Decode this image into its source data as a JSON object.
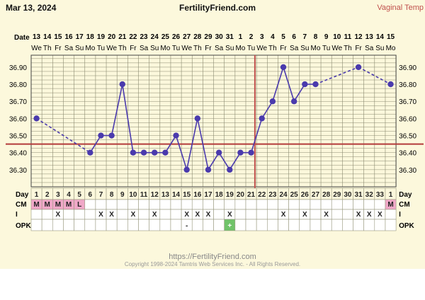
{
  "header": {
    "date": "Mar 13, 2024",
    "site": "FertilityFriend.com",
    "temp_method": "Vaginal Temp"
  },
  "footer": {
    "url": "https://FertilityFriend.com",
    "copyright": "Copyright 1998-2024 Tamtris Web Services Inc. - All Rights Reserved."
  },
  "colors": {
    "background": "#fcf8dc",
    "series": "#4a3aad",
    "coverline": "#b33a3a",
    "ovulation_line": "#c0504d",
    "grid": "#8a8a70",
    "cm_fill": "#f0a8c8",
    "opk_positive": "#70c36a"
  },
  "chart_data": {
    "type": "line",
    "date_row_label": "Date",
    "day_row_label": "Day",
    "dates": [
      "13",
      "14",
      "15",
      "16",
      "17",
      "18",
      "19",
      "20",
      "21",
      "22",
      "23",
      "24",
      "25",
      "26",
      "27",
      "28",
      "29",
      "30",
      "31",
      "1",
      "2",
      "3",
      "4",
      "5",
      "6",
      "7",
      "8",
      "9",
      "10",
      "11",
      "12",
      "13",
      "14",
      "15"
    ],
    "weekdays": [
      "We",
      "Th",
      "Fr",
      "Sa",
      "Su",
      "Mo",
      "Tu",
      "We",
      "Th",
      "Fr",
      "Sa",
      "Su",
      "Mo",
      "Tu",
      "We",
      "Th",
      "Fr",
      "Sa",
      "Su",
      "Mo",
      "Tu",
      "We",
      "Th",
      "Fr",
      "Sa",
      "Su",
      "Mo",
      "Tu",
      "We",
      "Th",
      "Fr",
      "Sa",
      "Su",
      "Mo"
    ],
    "cycle_days": [
      "1",
      "2",
      "3",
      "4",
      "5",
      "6",
      "7",
      "8",
      "9",
      "10",
      "11",
      "12",
      "13",
      "14",
      "15",
      "16",
      "17",
      "18",
      "19",
      "20",
      "21",
      "22",
      "23",
      "24",
      "25",
      "26",
      "27",
      "28",
      "29",
      "30",
      "31",
      "32",
      "33",
      "1"
    ],
    "y_ticks": [
      "36.30",
      "36.40",
      "36.50",
      "36.60",
      "36.70",
      "36.80",
      "36.90"
    ],
    "ylim": [
      36.2,
      36.97
    ],
    "temperatures": [
      36.6,
      null,
      null,
      null,
      null,
      36.4,
      36.5,
      36.5,
      36.8,
      36.4,
      36.4,
      36.4,
      36.4,
      36.5,
      36.3,
      36.6,
      36.3,
      36.4,
      36.3,
      36.4,
      36.4,
      36.6,
      36.7,
      36.9,
      36.7,
      36.8,
      36.8,
      null,
      null,
      null,
      36.9,
      null,
      null,
      36.8
    ],
    "coverline": 36.45,
    "ovulation_after_index": 20,
    "cm_label": "CM",
    "cm": [
      "M",
      "M",
      "M",
      "M",
      "L",
      "",
      "",
      "",
      "",
      "",
      "",
      "",
      "",
      "",
      "",
      "",
      "",
      "",
      "",
      "",
      "",
      "",
      "",
      "",
      "",
      "",
      "",
      "",
      "",
      "",
      "",
      "",
      "",
      "M"
    ],
    "i_label": "I",
    "intercourse": [
      "",
      "",
      "X",
      "",
      "",
      "",
      "X",
      "X",
      "",
      "X",
      "",
      "X",
      "",
      "",
      "X",
      "X",
      "X",
      "",
      "X",
      "",
      "",
      "",
      "",
      "X",
      "",
      "X",
      "",
      "X",
      "",
      "",
      "X",
      "X",
      "X",
      ""
    ],
    "opk_label": "OPK",
    "opk": [
      "",
      "",
      "",
      "",
      "",
      "",
      "",
      "",
      "",
      "",
      "",
      "",
      "",
      "",
      "-",
      "",
      "",
      "",
      "+",
      "",
      "",
      "",
      "",
      "",
      "",
      "",
      "",
      "",
      "",
      "",
      "",
      "",
      "",
      ""
    ]
  }
}
